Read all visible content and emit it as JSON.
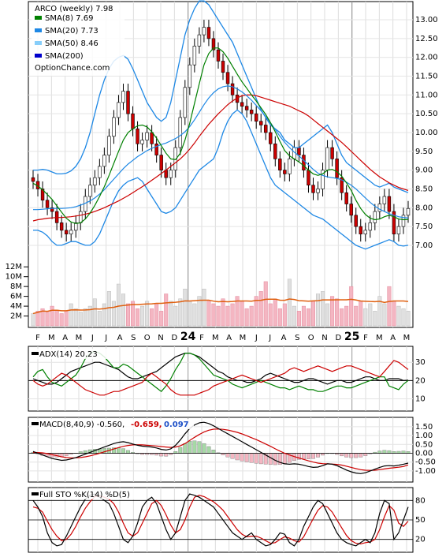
{
  "chart_data": [
    {
      "type": "candlestick",
      "title": "ARCO (weekly) 7.98",
      "watermark": "OptionChance.com",
      "legend": [
        {
          "name": "SMA(8) 7.69",
          "color": "#008000"
        },
        {
          "name": "SMA(20) 7.73",
          "color": "#1e88e5"
        },
        {
          "name": "SMA(50) 8.46",
          "color": "#87cefa"
        },
        {
          "name": "SMA(200)",
          "color": "#0000cc"
        }
      ],
      "y_ticks": [
        "13.00",
        "12.50",
        "12.00",
        "11.50",
        "11.00",
        "10.50",
        "10.00",
        "9.50",
        "9.00",
        "8.50",
        "8.00",
        "7.50",
        "7.00"
      ],
      "ylim": [
        6.6,
        13.4
      ],
      "x_ticks": [
        "F",
        "M",
        "A",
        "M",
        "J",
        "J",
        "A",
        "S",
        "O",
        "N",
        "D",
        "24",
        "F",
        "M",
        "A",
        "M",
        "J",
        "J",
        "A",
        "S",
        "O",
        "N",
        "D",
        "25",
        "F",
        "M",
        "A",
        "M"
      ],
      "close": [
        8.7,
        8.5,
        8.2,
        8.0,
        7.9,
        7.6,
        7.4,
        7.3,
        7.4,
        7.6,
        7.9,
        8.3,
        8.6,
        8.8,
        9.1,
        9.4,
        9.9,
        10.4,
        10.8,
        11.1,
        10.5,
        10.1,
        9.7,
        9.8,
        10.0,
        9.7,
        9.4,
        9.0,
        8.8,
        9.0,
        9.6,
        10.4,
        11.2,
        11.8,
        12.3,
        12.6,
        12.8,
        12.5,
        12.2,
        11.9,
        11.6,
        11.3,
        11.0,
        10.8,
        10.7,
        10.6,
        10.5,
        10.3,
        10.2,
        10.0,
        9.7,
        9.3,
        9.0,
        8.9,
        9.3,
        9.6,
        9.4,
        9.0,
        8.6,
        8.4,
        8.5,
        9.0,
        9.6,
        9.3,
        8.8,
        8.4,
        8.1,
        7.8,
        7.5,
        7.3,
        7.4,
        7.6,
        7.9,
        8.1,
        8.3,
        7.9,
        7.3,
        7.5,
        7.8,
        7.98
      ],
      "sma8": [
        8.65,
        8.58,
        8.48,
        8.35,
        8.22,
        8.05,
        7.88,
        7.72,
        7.62,
        7.58,
        7.6,
        7.7,
        7.86,
        8.06,
        8.3,
        8.56,
        8.86,
        9.18,
        9.5,
        9.8,
        10.0,
        10.1,
        10.18,
        10.2,
        10.15,
        10.02,
        9.85,
        9.65,
        9.45,
        9.3,
        9.28,
        9.45,
        9.8,
        10.25,
        10.78,
        11.3,
        11.8,
        12.1,
        12.25,
        12.25,
        12.15,
        11.98,
        11.76,
        11.55,
        11.35,
        11.18,
        11.0,
        10.84,
        10.66,
        10.48,
        10.26,
        10.02,
        9.76,
        9.52,
        9.38,
        9.3,
        9.22,
        9.12,
        9.0,
        8.9,
        8.86,
        8.9,
        9.0,
        9.02,
        8.96,
        8.84,
        8.66,
        8.46,
        8.2,
        7.98,
        7.82,
        7.72,
        7.68,
        7.7,
        7.76,
        7.8,
        7.76,
        7.7,
        7.68,
        7.69
      ],
      "sma20": [
        7.95,
        7.95,
        7.96,
        7.97,
        7.98,
        7.98,
        7.98,
        7.99,
        8.0,
        8.03,
        8.07,
        8.12,
        8.18,
        8.26,
        8.36,
        8.48,
        8.62,
        8.76,
        8.9,
        9.04,
        9.16,
        9.26,
        9.36,
        9.44,
        9.52,
        9.58,
        9.63,
        9.68,
        9.72,
        9.78,
        9.84,
        9.92,
        10.02,
        10.16,
        10.34,
        10.54,
        10.74,
        10.92,
        11.06,
        11.16,
        11.22,
        11.24,
        11.22,
        11.16,
        11.08,
        10.98,
        10.86,
        10.72,
        10.58,
        10.42,
        10.26,
        10.08,
        9.9,
        9.74,
        9.6,
        9.48,
        9.38,
        9.26,
        9.14,
        9.02,
        8.92,
        8.86,
        8.82,
        8.8,
        8.78,
        8.74,
        8.68,
        8.6,
        8.5,
        8.38,
        8.26,
        8.14,
        8.04,
        7.96,
        7.9,
        7.84,
        7.8,
        7.76,
        7.74,
        7.73
      ],
      "sma50": [
        7.65,
        7.68,
        7.7,
        7.72,
        7.73,
        7.74,
        7.74,
        7.75,
        7.76,
        7.78,
        7.8,
        7.83,
        7.86,
        7.9,
        7.95,
        8.0,
        8.06,
        8.12,
        8.18,
        8.25,
        8.32,
        8.4,
        8.48,
        8.56,
        8.64,
        8.73,
        8.82,
        8.91,
        9.0,
        9.1,
        9.2,
        9.3,
        9.42,
        9.56,
        9.72,
        9.9,
        10.06,
        10.22,
        10.36,
        10.5,
        10.62,
        10.74,
        10.84,
        10.92,
        10.98,
        11.0,
        11.0,
        10.98,
        10.94,
        10.9,
        10.86,
        10.82,
        10.78,
        10.74,
        10.7,
        10.64,
        10.58,
        10.52,
        10.44,
        10.34,
        10.24,
        10.14,
        10.04,
        9.94,
        9.84,
        9.74,
        9.62,
        9.5,
        9.38,
        9.26,
        9.14,
        9.02,
        8.92,
        8.82,
        8.74,
        8.66,
        8.6,
        8.54,
        8.5,
        8.46
      ],
      "upper_band": [
        9.0,
        9.0,
        9.02,
        9.0,
        8.95,
        8.9,
        8.9,
        8.92,
        8.98,
        9.1,
        9.3,
        9.6,
        10.0,
        10.5,
        11.0,
        11.4,
        11.7,
        11.9,
        12.0,
        12.05,
        11.95,
        11.7,
        11.4,
        11.1,
        10.8,
        10.6,
        10.4,
        10.3,
        10.4,
        10.8,
        11.4,
        12.0,
        12.6,
        13.0,
        13.3,
        13.5,
        13.5,
        13.4,
        13.2,
        13.0,
        12.8,
        12.6,
        12.4,
        12.1,
        11.8,
        11.5,
        11.2,
        10.9,
        10.6,
        10.4,
        10.2,
        10.1,
        10.0,
        9.8,
        9.7,
        9.6,
        9.6,
        9.7,
        9.8,
        9.9,
        10.0,
        10.1,
        10.2,
        10.0,
        9.7,
        9.4,
        9.2,
        9.1,
        9.0,
        8.9,
        8.8,
        8.7,
        8.6,
        8.55,
        8.6,
        8.65,
        8.55,
        8.5,
        8.45,
        8.4
      ],
      "lower_band": [
        7.4,
        7.4,
        7.35,
        7.25,
        7.1,
        7.0,
        7.0,
        7.05,
        7.1,
        7.1,
        7.05,
        7.0,
        7.0,
        7.1,
        7.3,
        7.6,
        7.9,
        8.2,
        8.45,
        8.6,
        8.7,
        8.75,
        8.8,
        8.7,
        8.5,
        8.3,
        8.1,
        7.9,
        7.85,
        7.9,
        8.0,
        8.2,
        8.4,
        8.6,
        8.8,
        9.0,
        9.1,
        9.2,
        9.3,
        9.6,
        10.0,
        10.3,
        10.5,
        10.6,
        10.5,
        10.3,
        10.0,
        9.7,
        9.4,
        9.1,
        8.8,
        8.6,
        8.5,
        8.4,
        8.3,
        8.2,
        8.1,
        8.0,
        7.9,
        7.8,
        7.75,
        7.7,
        7.6,
        7.5,
        7.4,
        7.3,
        7.2,
        7.1,
        7.0,
        6.95,
        6.9,
        6.95,
        7.0,
        7.05,
        7.1,
        7.15,
        7.1,
        7.0,
        6.98,
        7.0
      ],
      "volume_ticks": [
        "12M",
        "10M",
        "8M",
        "6M",
        "4M",
        "2M"
      ],
      "volume_ylim": [
        0,
        13
      ],
      "volume": [
        2.5,
        3.0,
        3.5,
        2.8,
        4.0,
        3.2,
        2.5,
        3.0,
        4.5,
        3.5,
        2.8,
        3.5,
        4.0,
        5.5,
        3.0,
        4.5,
        7.0,
        5.0,
        8.5,
        6.5,
        4.5,
        5.0,
        3.5,
        4.0,
        5.0,
        3.5,
        4.5,
        3.0,
        6.5,
        5.0,
        4.0,
        5.5,
        7.5,
        5.0,
        4.5,
        6.0,
        7.5,
        5.0,
        4.5,
        4.0,
        5.5,
        4.0,
        4.5,
        6.0,
        5.0,
        3.5,
        4.0,
        6.0,
        7.0,
        9.0,
        4.5,
        5.5,
        3.5,
        4.5,
        9.5,
        4.0,
        3.0,
        4.0,
        3.5,
        5.0,
        6.5,
        7.0,
        4.5,
        6.0,
        5.5,
        3.5,
        4.0,
        8.0,
        4.0,
        5.0,
        3.5,
        4.5,
        3.0,
        6.0,
        4.5,
        8.0,
        5.0,
        4.0,
        3.5,
        3.0
      ]
    },
    {
      "type": "line",
      "title": "ADX(14) 20.23",
      "y_ticks": [
        "30",
        "20",
        "10"
      ],
      "ylim": [
        5,
        37
      ],
      "series": [
        {
          "color": "#000000",
          "values": [
            21,
            20,
            19,
            18,
            18,
            19,
            21,
            23,
            25,
            26,
            27,
            28,
            29,
            30,
            30,
            29,
            28,
            27,
            26,
            24,
            22,
            21,
            21,
            22,
            23,
            24,
            25,
            27,
            29,
            31,
            33,
            34,
            35,
            35,
            34,
            33,
            31,
            29,
            27,
            25,
            24,
            22,
            21,
            20,
            20,
            19,
            19,
            20,
            21,
            23,
            24,
            23,
            22,
            21,
            20,
            19,
            19,
            20,
            21,
            21,
            20,
            19,
            18,
            19,
            20,
            20,
            19,
            19,
            20,
            21,
            22,
            22,
            21,
            20,
            20,
            21,
            21,
            21,
            20,
            20.23
          ]
        },
        {
          "color": "#008000",
          "values": [
            22,
            25,
            26,
            22,
            19,
            18,
            17,
            19,
            21,
            23,
            27,
            32,
            35,
            36,
            35,
            33,
            30,
            27,
            27,
            29,
            28,
            26,
            24,
            22,
            20,
            18,
            16,
            14,
            17,
            21,
            26,
            30,
            35,
            35,
            34,
            32,
            29,
            26,
            23,
            22,
            21,
            20,
            18,
            17,
            16,
            17,
            18,
            19,
            20,
            19,
            18,
            17,
            16,
            16,
            15,
            16,
            17,
            16,
            15,
            15,
            14,
            14,
            15,
            16,
            17,
            17,
            16,
            16,
            17,
            18,
            19,
            20,
            21,
            22,
            22,
            17,
            16,
            15,
            18,
            20
          ]
        },
        {
          "color": "#cc0000",
          "values": [
            20,
            18,
            17,
            18,
            20,
            22,
            24,
            23,
            21,
            19,
            17,
            15,
            14,
            13,
            12,
            12,
            13,
            14,
            14,
            15,
            16,
            17,
            18,
            19,
            22,
            24,
            22,
            20,
            18,
            15,
            13,
            12,
            12,
            12,
            12,
            13,
            14,
            15,
            17,
            18,
            19,
            20,
            21,
            22,
            23,
            22,
            21,
            20,
            19,
            20,
            21,
            22,
            23,
            24,
            26,
            27,
            26,
            25,
            26,
            27,
            28,
            27,
            26,
            25,
            26,
            27,
            28,
            28,
            27,
            26,
            25,
            24,
            23,
            22,
            25,
            28,
            31,
            30,
            28,
            26
          ]
        }
      ]
    },
    {
      "type": "bar+line",
      "title": "MACD(8,40,9) -0.560,",
      "title_values": [
        {
          "text": "-0.659,",
          "color": "#cc0000"
        },
        {
          "text": "0.097",
          "color": "#1e50c8"
        }
      ],
      "y_ticks": [
        "1.50",
        "1.00",
        "0.50",
        "0.00",
        "-0.50",
        "-1.00"
      ],
      "ylim": [
        -1.45,
        1.85
      ],
      "macd": [
        0.1,
        0.0,
        -0.1,
        -0.2,
        -0.3,
        -0.35,
        -0.4,
        -0.38,
        -0.32,
        -0.25,
        -0.15,
        -0.05,
        0.05,
        0.15,
        0.25,
        0.35,
        0.45,
        0.55,
        0.62,
        0.65,
        0.6,
        0.52,
        0.45,
        0.4,
        0.38,
        0.35,
        0.3,
        0.22,
        0.18,
        0.25,
        0.45,
        0.75,
        1.1,
        1.4,
        1.6,
        1.72,
        1.75,
        1.68,
        1.55,
        1.4,
        1.25,
        1.1,
        0.95,
        0.8,
        0.65,
        0.5,
        0.35,
        0.2,
        0.05,
        -0.1,
        -0.25,
        -0.4,
        -0.52,
        -0.6,
        -0.62,
        -0.6,
        -0.62,
        -0.68,
        -0.75,
        -0.8,
        -0.78,
        -0.7,
        -0.6,
        -0.62,
        -0.7,
        -0.82,
        -0.95,
        -1.05,
        -1.12,
        -1.15,
        -1.1,
        -1.0,
        -0.9,
        -0.8,
        -0.72,
        -0.7,
        -0.72,
        -0.68,
        -0.62,
        -0.56
      ],
      "signal": [
        0.05,
        0.04,
        0.02,
        -0.02,
        -0.08,
        -0.14,
        -0.2,
        -0.24,
        -0.26,
        -0.26,
        -0.24,
        -0.2,
        -0.15,
        -0.08,
        0.0,
        0.08,
        0.16,
        0.24,
        0.32,
        0.39,
        0.44,
        0.47,
        0.48,
        0.47,
        0.45,
        0.43,
        0.41,
        0.38,
        0.35,
        0.33,
        0.35,
        0.42,
        0.55,
        0.72,
        0.9,
        1.06,
        1.2,
        1.3,
        1.36,
        1.37,
        1.35,
        1.31,
        1.25,
        1.18,
        1.09,
        0.99,
        0.88,
        0.77,
        0.65,
        0.52,
        0.39,
        0.25,
        0.12,
        0.0,
        -0.1,
        -0.19,
        -0.27,
        -0.35,
        -0.43,
        -0.5,
        -0.56,
        -0.59,
        -0.6,
        -0.61,
        -0.63,
        -0.67,
        -0.73,
        -0.8,
        -0.87,
        -0.93,
        -0.96,
        -0.97,
        -0.96,
        -0.93,
        -0.89,
        -0.85,
        -0.82,
        -0.79,
        -0.75,
        -0.66
      ]
    },
    {
      "type": "line",
      "title": "Full STO %K(14) %D(5)",
      "y_ticks": [
        "80",
        "50",
        "20"
      ],
      "ylim": [
        5,
        95
      ],
      "k": [
        80,
        70,
        55,
        30,
        15,
        10,
        12,
        25,
        40,
        55,
        70,
        82,
        88,
        90,
        85,
        80,
        75,
        60,
        40,
        20,
        15,
        25,
        45,
        70,
        80,
        85,
        75,
        55,
        35,
        20,
        30,
        55,
        80,
        90,
        88,
        85,
        80,
        75,
        70,
        60,
        50,
        40,
        30,
        25,
        20,
        25,
        30,
        20,
        15,
        10,
        12,
        20,
        30,
        28,
        15,
        10,
        20,
        40,
        55,
        70,
        80,
        75,
        60,
        45,
        30,
        20,
        15,
        12,
        10,
        15,
        20,
        15,
        30,
        60,
        80,
        75,
        20,
        30,
        50,
        70
      ],
      "d": [
        70,
        68,
        62,
        48,
        35,
        25,
        18,
        20,
        28,
        40,
        55,
        68,
        78,
        86,
        87,
        85,
        82,
        75,
        62,
        45,
        30,
        25,
        30,
        45,
        60,
        75,
        80,
        72,
        58,
        42,
        30,
        35,
        50,
        70,
        85,
        88,
        86,
        82,
        78,
        72,
        65,
        55,
        45,
        35,
        28,
        24,
        25,
        25,
        22,
        18,
        14,
        15,
        20,
        24,
        22,
        18,
        16,
        24,
        38,
        52,
        65,
        72,
        70,
        62,
        50,
        38,
        26,
        18,
        14,
        13,
        15,
        16,
        20,
        35,
        55,
        72,
        65,
        45,
        40,
        48
      ]
    }
  ]
}
